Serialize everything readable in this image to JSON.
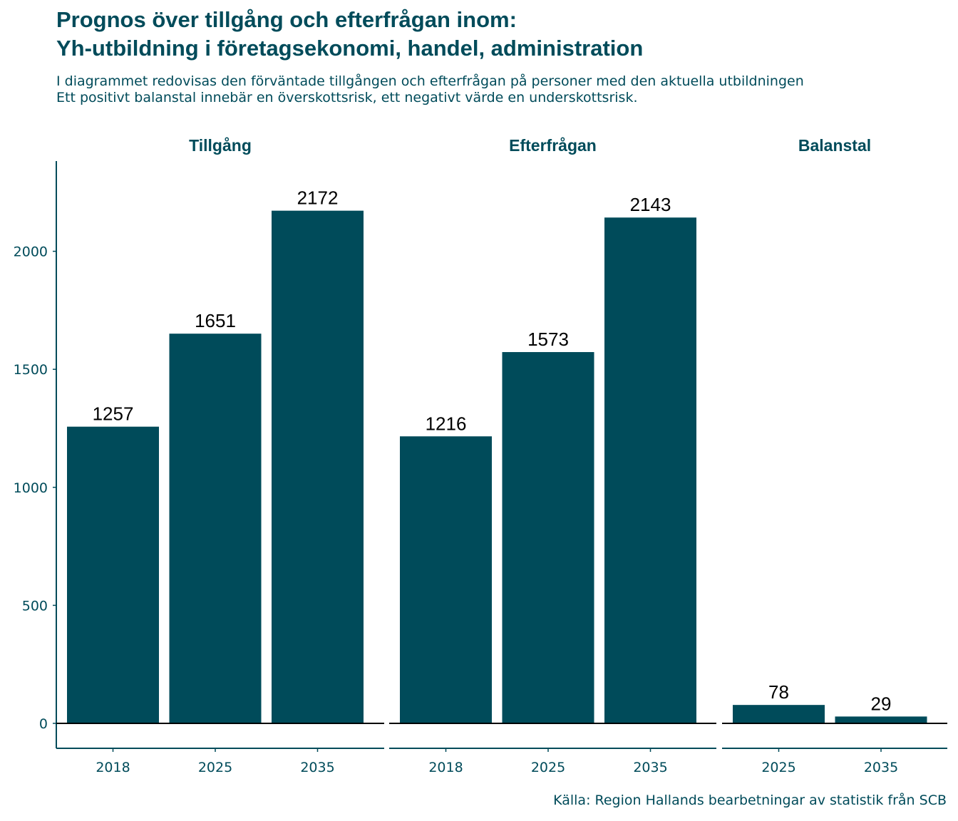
{
  "title_lines": [
    "Prognos över tillgång och efterfrågan inom:",
    "Yh-utbildning i företagsekonomi, handel, administration"
  ],
  "subtitle_lines": [
    "I diagrammet redovisas den förväntade tillgången och efterfrågan på personer med den aktuella utbildningen",
    "Ett positivt balanstal innebär en överskottsrisk, ett negativt värde en underskottsrisk."
  ],
  "caption": "Källa: Region Hallands bearbetningar av statistik från SCB",
  "colors": {
    "bar": "#004b5a",
    "text": "#004b5a",
    "label": "#000000"
  },
  "chart_data": {
    "type": "bar",
    "layout": "faceted",
    "ylim": [
      -100,
      2300
    ],
    "yticks": [
      0,
      500,
      1000,
      1500,
      2000
    ],
    "ytick_labels": [
      "0",
      "500",
      "1000",
      "1500",
      "2000"
    ],
    "facets": [
      {
        "name": "Tillgång",
        "categories": [
          "2018",
          "2025",
          "2035"
        ],
        "values": [
          1257,
          1651,
          2172
        ],
        "labels": [
          "1257",
          "1651",
          "2172"
        ]
      },
      {
        "name": "Efterfrågan",
        "categories": [
          "2018",
          "2025",
          "2035"
        ],
        "values": [
          1216,
          1573,
          2143
        ],
        "labels": [
          "1216",
          "1573",
          "2143"
        ]
      },
      {
        "name": "Balanstal",
        "categories": [
          "2025",
          "2035"
        ],
        "values": [
          78,
          29
        ],
        "labels": [
          "78",
          "29"
        ]
      }
    ]
  }
}
